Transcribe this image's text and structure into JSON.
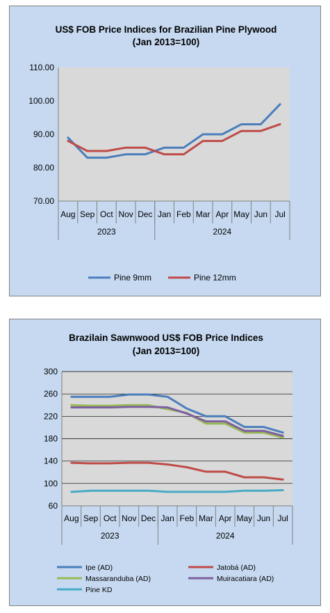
{
  "chart_data": [
    {
      "type": "line",
      "title": "US$ FOB Price Indices for Brazilian  Pine Plywood",
      "subtitle": "(Jan 2013=100)",
      "categories": [
        "Aug",
        "Sep",
        "Oct",
        "Nov",
        "Dec",
        "Jan",
        "Feb",
        "Mar",
        "Apr",
        "May",
        "Jun",
        "Jul"
      ],
      "year_groups": [
        {
          "label": "2023",
          "count": 5
        },
        {
          "label": "2024",
          "count": 7
        }
      ],
      "ylim": [
        70,
        110
      ],
      "yticks": [
        "70.00",
        "80.00",
        "90.00",
        "100.00",
        "110.00"
      ],
      "grid": false,
      "legend_position": "bottom",
      "series": [
        {
          "name": "Pine 9mm",
          "color": "#4a7ebb",
          "values": [
            89,
            83,
            83,
            84,
            84,
            86,
            86,
            90,
            90,
            93,
            93,
            99
          ]
        },
        {
          "name": "Pine 12mm",
          "color": "#be4b48",
          "values": [
            88,
            85,
            85,
            86,
            86,
            84,
            84,
            88,
            88,
            91,
            91,
            93
          ]
        }
      ]
    },
    {
      "type": "line",
      "title": "Brazilain Sawnwood US$ FOB Price Indices",
      "subtitle": "(Jan 2013=100)",
      "categories": [
        "Aug",
        "Sep",
        "Oct",
        "Nov",
        "Dec",
        "Jan",
        "Feb",
        "Mar",
        "Apr",
        "May",
        "Jun",
        "Jul"
      ],
      "year_groups": [
        {
          "label": "2023",
          "count": 5
        },
        {
          "label": "2024",
          "count": 7
        }
      ],
      "ylim": [
        60,
        300
      ],
      "yticks": [
        "60",
        "100",
        "140",
        "180",
        "220",
        "260",
        "300"
      ],
      "grid": true,
      "legend_position": "bottom",
      "series": [
        {
          "name": "Ipe (AD)",
          "color": "#4a7ebb",
          "values": [
            255,
            255,
            255,
            259,
            259,
            255,
            234,
            220,
            220,
            201,
            201,
            191
          ]
        },
        {
          "name": "Jatobá (AD)",
          "color": "#be4b48",
          "values": [
            137,
            136,
            136,
            137,
            137,
            134,
            129,
            121,
            121,
            111,
            111,
            107
          ]
        },
        {
          "name": "Massaranduba (AD)",
          "color": "#98b954",
          "values": [
            240,
            239,
            239,
            240,
            240,
            233,
            226,
            207,
            207,
            191,
            191,
            182
          ]
        },
        {
          "name": "Muiracatiara (AD)",
          "color": "#7d60a0",
          "values": [
            236,
            236,
            236,
            237,
            237,
            236,
            225,
            211,
            211,
            194,
            194,
            185
          ]
        },
        {
          "name": "Pine KD",
          "color": "#46aac5",
          "values": [
            85,
            87,
            87,
            87,
            87,
            85,
            85,
            85,
            85,
            87,
            87,
            88
          ]
        }
      ]
    }
  ]
}
